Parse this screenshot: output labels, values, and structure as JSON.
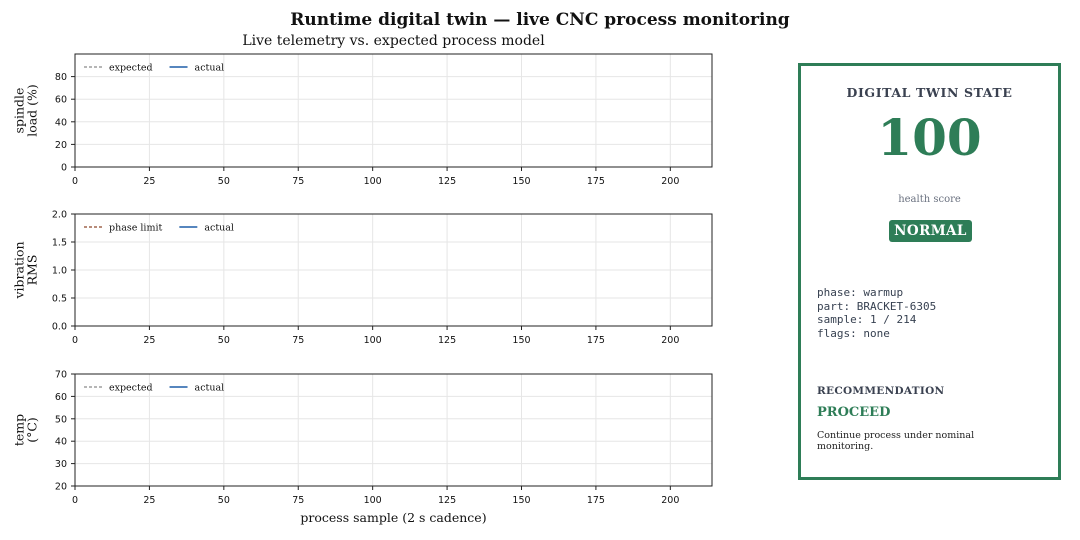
{
  "figure": {
    "title": "Runtime digital twin — live CNC process monitoring",
    "subtitle": "Live telemetry vs. expected process model"
  },
  "chart_data": [
    {
      "type": "line",
      "ylabel": "spindle\nload (%)",
      "xlabel": "",
      "xlim": [
        0,
        214
      ],
      "ylim": [
        0,
        100
      ],
      "xticks": [
        0,
        25,
        50,
        75,
        100,
        125,
        150,
        175,
        200
      ],
      "yticks": [
        0,
        20,
        40,
        60,
        80
      ],
      "grid": true,
      "legend_position": "top-left",
      "series": [
        {
          "name": "expected",
          "color": "#9e9e9e",
          "style": "dashed",
          "x": [],
          "y": []
        },
        {
          "name": "actual",
          "color": "#1f5fa8",
          "style": "solid",
          "x": [],
          "y": []
        }
      ]
    },
    {
      "type": "line",
      "ylabel": "vibration\nRMS",
      "xlabel": "",
      "xlim": [
        0,
        214
      ],
      "ylim": [
        0,
        2.0
      ],
      "xticks": [
        0,
        25,
        50,
        75,
        100,
        125,
        150,
        175,
        200
      ],
      "yticks": [
        0.0,
        0.5,
        1.0,
        1.5,
        2.0
      ],
      "ytick_decimals": 1,
      "grid": true,
      "legend_position": "top-left",
      "series": [
        {
          "name": "phase limit",
          "color": "#a0664f",
          "style": "dashed",
          "x": [],
          "y": []
        },
        {
          "name": "actual",
          "color": "#1f5fa8",
          "style": "solid",
          "x": [],
          "y": []
        }
      ]
    },
    {
      "type": "line",
      "ylabel": "temp\n(°C)",
      "xlabel": "process sample (2 s cadence)",
      "xlim": [
        0,
        214
      ],
      "ylim": [
        20,
        70
      ],
      "xticks": [
        0,
        25,
        50,
        75,
        100,
        125,
        150,
        175,
        200
      ],
      "yticks": [
        20,
        30,
        40,
        50,
        60,
        70
      ],
      "grid": true,
      "legend_position": "top-left",
      "series": [
        {
          "name": "expected",
          "color": "#9e9e9e",
          "style": "dashed",
          "x": [],
          "y": []
        },
        {
          "name": "actual",
          "color": "#1f5fa8",
          "style": "solid",
          "x": [],
          "y": []
        }
      ]
    }
  ],
  "panel": {
    "heading": "DIGITAL TWIN STATE",
    "score": "100",
    "score_label": "health score",
    "status": "NORMAL",
    "status_color": "#2e7d57",
    "info": {
      "phase": "phase: warmup",
      "part": "part: BRACKET-6305",
      "sample": "sample: 1 / 214",
      "flags": "flags: none"
    },
    "recommendation_heading": "RECOMMENDATION",
    "recommendation": "PROCEED",
    "recommendation_text": "Continue process under nominal monitoring."
  }
}
